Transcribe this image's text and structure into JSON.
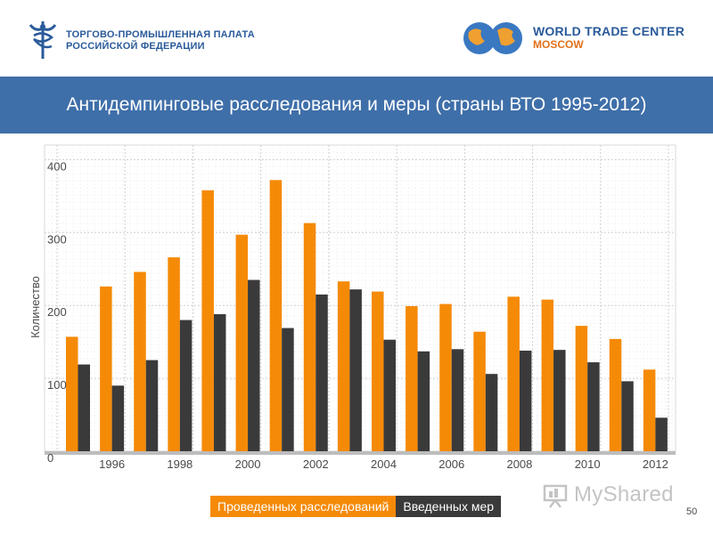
{
  "header": {
    "org_line1": "ТОРГОВО-ПРОМЫШЛЕННАЯ ПАЛАТА",
    "org_line2": "РОССИЙСКОЙ ФЕДЕРАЦИИ",
    "wtc_line1": "WORLD TRADE CENTER",
    "wtc_line2": "MOSCOW"
  },
  "slide": {
    "title": "Антидемпинговые расследования и меры (страны ВТО 1995-2012)",
    "page_number": "50"
  },
  "watermark": {
    "text": "MyShared"
  },
  "colors": {
    "investigations": "#f58a07",
    "measures": "#3a3a3a",
    "title_bar": "#3f6fa9",
    "grid": "#cfcfcf",
    "plot_background": "#ffffff"
  },
  "chart_data": {
    "type": "bar",
    "title": "Антидемпинговые расследования и меры (страны ВТО 1995-2012)",
    "xlabel": "",
    "ylabel": "Количество",
    "ylim": [
      0,
      420
    ],
    "yticks": [
      0,
      100,
      200,
      300,
      400
    ],
    "categories": [
      1995,
      1996,
      1997,
      1998,
      1999,
      2000,
      2001,
      2002,
      2003,
      2004,
      2005,
      2006,
      2007,
      2008,
      2009,
      2010,
      2011,
      2012
    ],
    "xtick_labels": [
      "",
      "1996",
      "",
      "1998",
      "",
      "2000",
      "",
      "2002",
      "",
      "2004",
      "",
      "2006",
      "",
      "2008",
      "",
      "2010",
      "",
      "2012"
    ],
    "series": [
      {
        "name": "Проведенных расследований",
        "values": [
          157,
          226,
          246,
          266,
          358,
          297,
          372,
          313,
          233,
          219,
          199,
          202,
          164,
          212,
          208,
          172,
          154,
          112
        ]
      },
      {
        "name": "Введенных мер",
        "values": [
          119,
          90,
          125,
          180,
          188,
          235,
          169,
          215,
          222,
          153,
          137,
          140,
          106,
          138,
          139,
          122,
          96,
          46
        ]
      }
    ],
    "grid": true,
    "legend_position": "bottom"
  }
}
